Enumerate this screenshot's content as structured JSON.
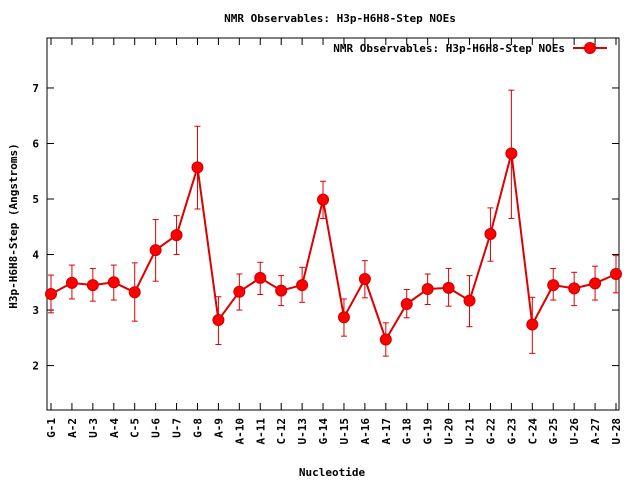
{
  "chart_data": {
    "type": "line",
    "title": "NMR Observables: H3p-H6H8-Step NOEs",
    "xlabel": "Nucleotide",
    "ylabel": "H3p-H6H8-Step (Angstroms)",
    "ylim": [
      1.2,
      7.9
    ],
    "y_ticks": [
      2,
      3,
      4,
      5,
      6,
      7
    ],
    "legend_position": "top-right",
    "grid": false,
    "series_color": "#ff0000",
    "line_color": "#dd0000",
    "categories": [
      "G-1",
      "A-2",
      "U-3",
      "A-4",
      "C-5",
      "U-6",
      "U-7",
      "G-8",
      "A-9",
      "A-10",
      "A-11",
      "C-12",
      "U-13",
      "G-14",
      "U-15",
      "A-16",
      "A-17",
      "G-18",
      "G-19",
      "U-20",
      "U-21",
      "G-22",
      "G-23",
      "C-24",
      "G-25",
      "U-26",
      "A-27",
      "U-28"
    ],
    "series": [
      {
        "name": "NMR Observables: H3p-H6H8-Step NOEs",
        "values": [
          3.29,
          3.49,
          3.45,
          3.5,
          3.32,
          4.08,
          4.35,
          5.57,
          2.82,
          3.33,
          3.58,
          3.35,
          3.45,
          4.99,
          2.87,
          3.56,
          2.47,
          3.11,
          3.38,
          3.4,
          3.17,
          4.37,
          5.82,
          2.74,
          3.45,
          3.39,
          3.48,
          3.65
        ],
        "err_low": [
          2.95,
          3.2,
          3.16,
          3.18,
          2.8,
          3.52,
          4.0,
          4.82,
          2.38,
          3.0,
          3.28,
          3.08,
          3.14,
          4.65,
          2.53,
          3.22,
          2.17,
          2.86,
          3.1,
          3.07,
          2.7,
          3.88,
          4.65,
          2.22,
          3.18,
          3.08,
          3.18,
          3.31
        ],
        "err_high": [
          3.63,
          3.81,
          3.75,
          3.81,
          3.85,
          4.63,
          4.7,
          6.31,
          3.24,
          3.65,
          3.86,
          3.62,
          3.77,
          5.32,
          3.2,
          3.89,
          2.77,
          3.37,
          3.65,
          3.75,
          3.62,
          4.84,
          6.96,
          3.23,
          3.75,
          3.68,
          3.79,
          3.98
        ]
      }
    ]
  }
}
